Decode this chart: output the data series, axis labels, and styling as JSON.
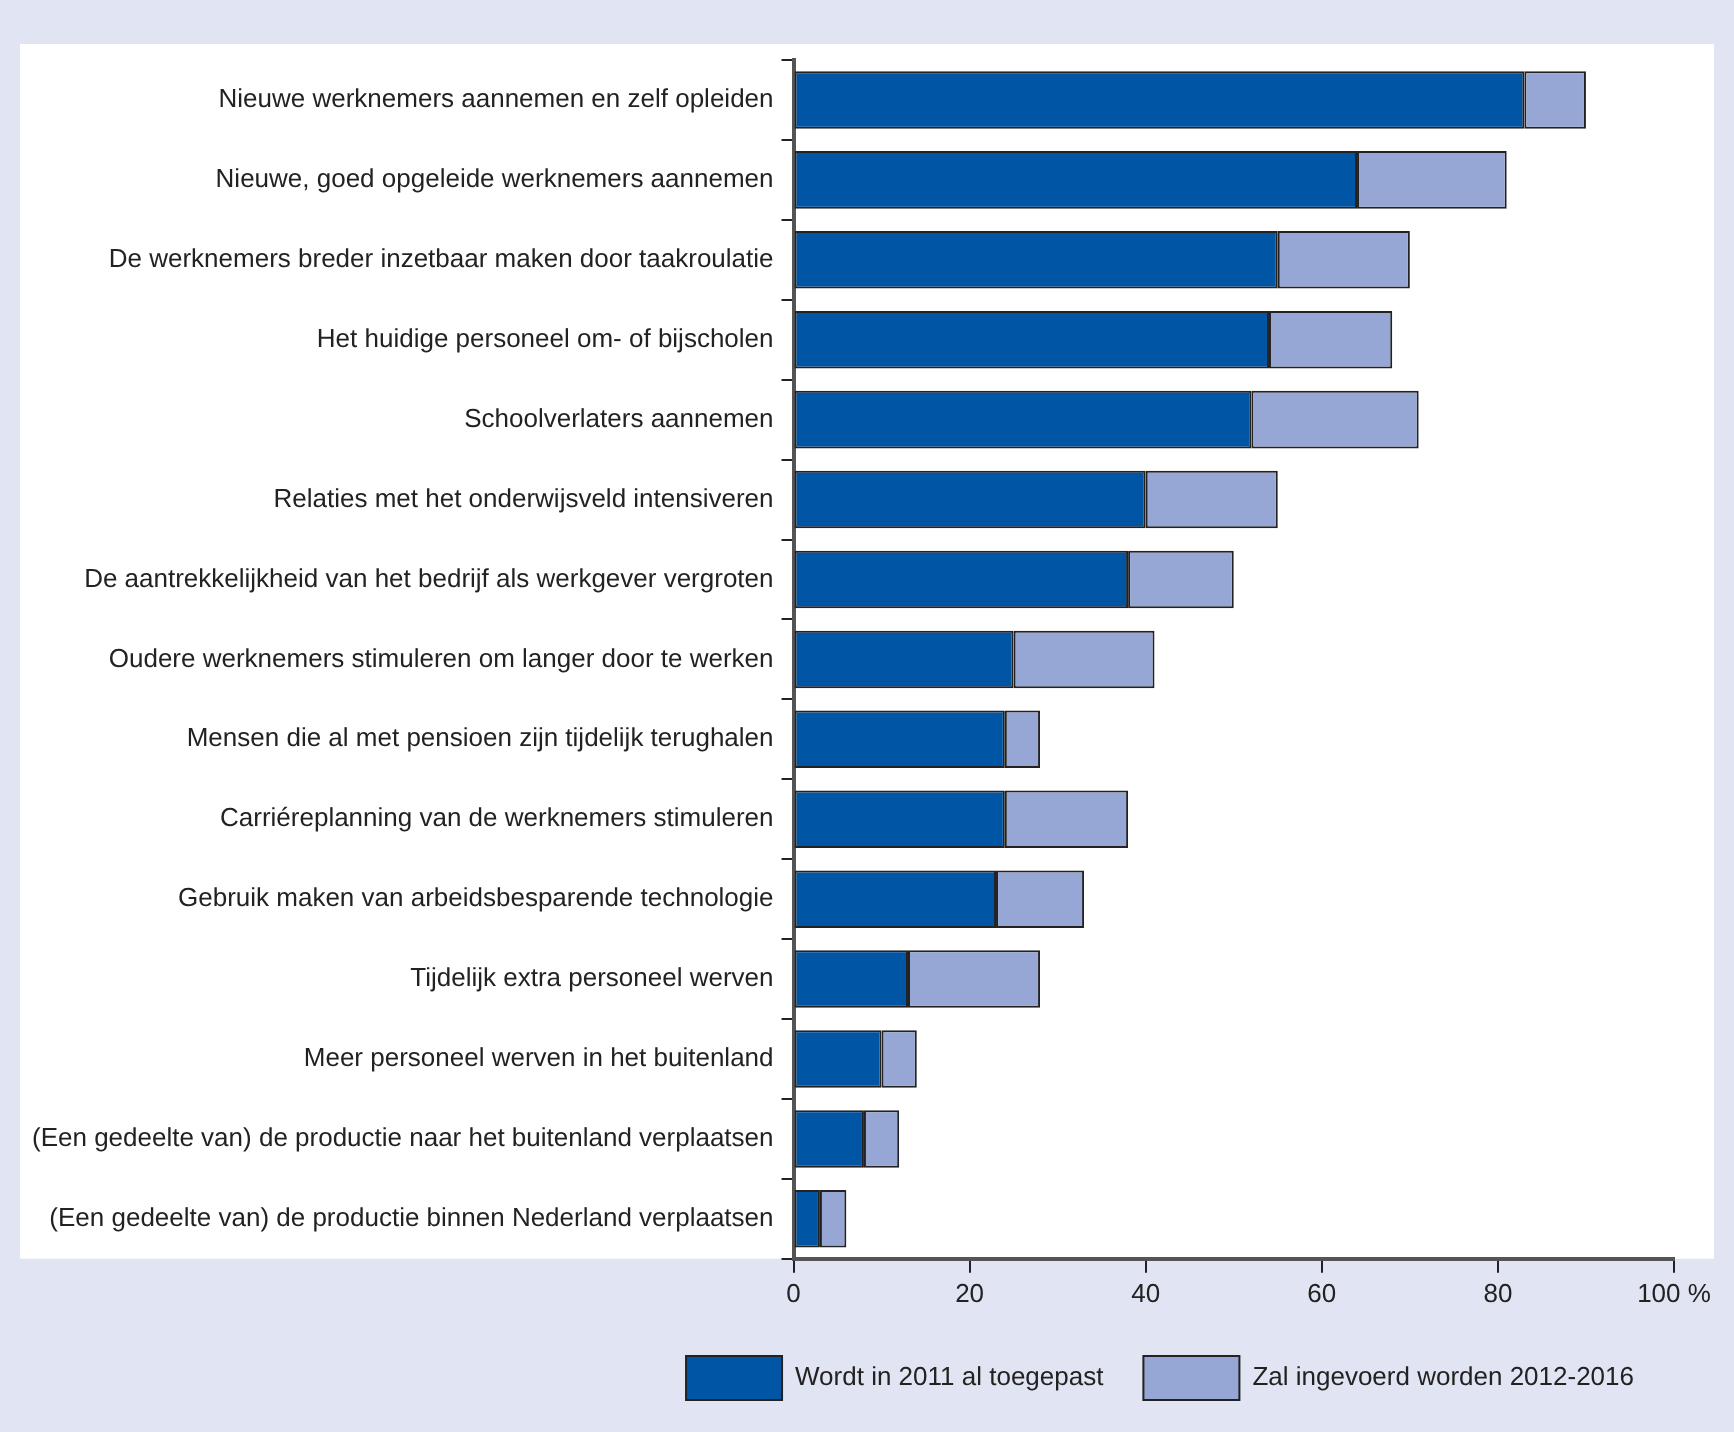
{
  "chart_data": {
    "type": "bar",
    "orientation": "horizontal",
    "stacked": true,
    "categories": [
      "Nieuwe werknemers aannemen en zelf opleiden",
      "Nieuwe, goed opgeleide werknemers aannemen",
      "De werknemers breder inzetbaar maken door taakroulatie",
      "Het huidige personeel om- of bijscholen",
      "Schoolverlaters aannemen",
      "Relaties met het onderwijsveld intensiveren",
      "De aantrekkelijkheid van het bedrijf als werkgever vergroten",
      "Oudere werknemers stimuleren om langer door te werken",
      "Mensen die al met pensioen zijn tijdelijk terughalen",
      "Carriéreplanning van de werknemers stimuleren",
      "Gebruik maken van arbeidsbesparende technologie",
      "Tijdelijk extra personeel werven",
      "Meer personeel werven in het buitenland",
      "(Een gedeelte van) de productie naar het buitenland verplaatsen",
      "(Een gedeelte van) de productie binnen Nederland verplaatsen"
    ],
    "series": [
      {
        "name": "Wordt in 2011 al toegepast",
        "color": "#0055a5",
        "values": [
          83,
          64,
          55,
          54,
          52,
          40,
          38,
          25,
          24,
          24,
          23,
          13,
          10,
          8,
          3
        ]
      },
      {
        "name": "Zal ingevoerd worden 2012-2016",
        "color": "#97a7d5",
        "values": [
          7,
          17,
          15,
          14,
          19,
          15,
          12,
          16,
          4,
          14,
          10,
          15,
          4,
          4,
          3
        ]
      }
    ],
    "xlim": [
      0,
      100
    ],
    "xticks": [
      0,
      20,
      40,
      60,
      80,
      {
        "value": 100,
        "label": "100 %"
      }
    ],
    "grid": false,
    "legend": "bottom"
  }
}
